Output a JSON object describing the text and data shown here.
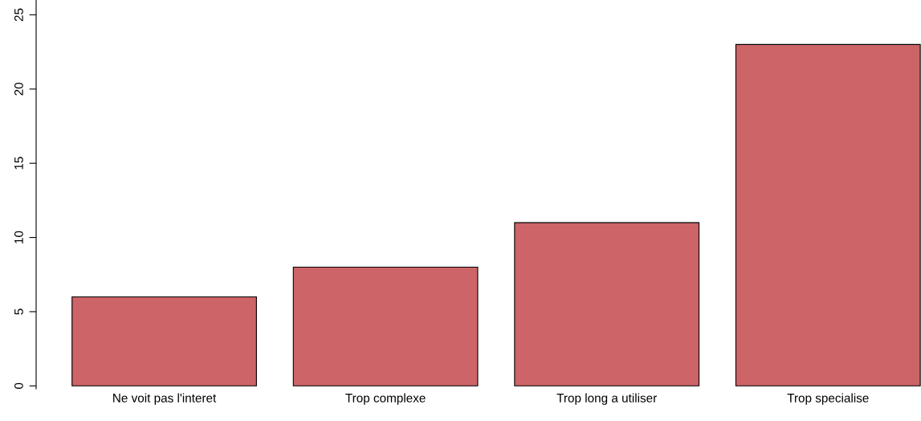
{
  "chart_data": {
    "type": "bar",
    "categories": [
      "Ne voit pas l'interet",
      "Trop complexe",
      "Trop long a utiliser",
      "Trop specialise"
    ],
    "values": [
      6,
      8,
      11,
      23
    ],
    "color": "#cd6467",
    "ylim": [
      -0.2,
      26
    ],
    "yticks": [
      0,
      5,
      10,
      15,
      20,
      25
    ],
    "grid": false
  }
}
